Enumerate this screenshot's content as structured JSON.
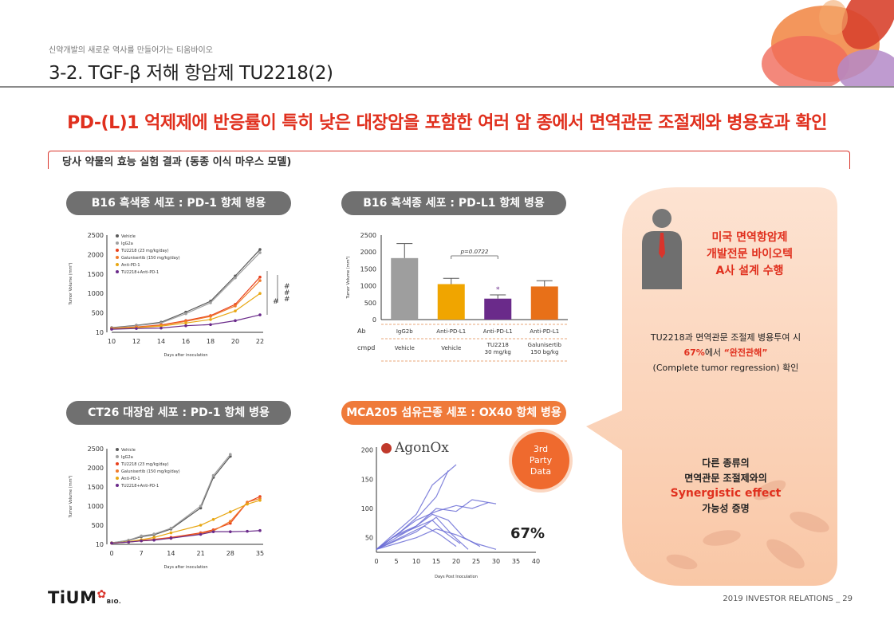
{
  "header": {
    "tagline": "신약개발의 새로운 역사를 만들어가는 티움바이오",
    "title": "3-2. TGF-β 저해 항암제 TU2218(2)"
  },
  "headline": "PD-(L)1 억제제에 반응률이 특히 낮은 대장암을 포함한 여러 암 종에서 면역관문 조절제와 병용효과 확인",
  "section_label": "당사 약물의 효능 실험 결과 (동종 이식 마우스 모델)",
  "panels": {
    "p1_title": "B16 흑색종 세포 : PD-1 항체 병용",
    "p2_title": "B16 흑색종 세포 : PD-L1 항체 병용",
    "p3_title": "CT26 대장암 세포 : PD-1 항체 병용",
    "p4_title": "MCA205 섬유근종 세포 : OX40 항체 병용"
  },
  "colors": {
    "vehicle": "#5a5a5a",
    "igg2a": "#a0a0a0",
    "tu2218": "#e8401c",
    "galunisertib": "#f07a2a",
    "anti_pd1": "#e8a713",
    "combo": "#6a2a8a",
    "accent_red": "#e0301e",
    "accent_orange": "#ef7a3a",
    "agonox_line": "#6c6fd6"
  },
  "chart_data": [
    {
      "type": "line",
      "id": "b16_pd1",
      "xlabel": "Days after inoculation",
      "ylabel": "Tumor Volume (mm³)",
      "x": [
        10,
        12,
        14,
        16,
        18,
        20,
        22
      ],
      "x_ticks": [
        "10",
        "12",
        "14",
        "16",
        "18",
        "20",
        "22"
      ],
      "y_ticks": [
        "10",
        "500",
        "1000",
        "1500",
        "2000",
        "2500"
      ],
      "ylim": [
        0,
        2500
      ],
      "legend": [
        "Vehicle",
        "IgG2a",
        "TU2218 (23 mg/kg/day)",
        "Galunisertib (150 mg/kg/day)",
        "Anti-PD-1",
        "TU2218+Anti-PD-1"
      ],
      "series": [
        {
          "name": "Vehicle",
          "values": [
            120,
            180,
            260,
            520,
            800,
            1450,
            2130
          ]
        },
        {
          "name": "IgG2a",
          "values": [
            110,
            170,
            240,
            480,
            760,
            1400,
            2050
          ]
        },
        {
          "name": "TU2218 (23 mg/kg/day)",
          "values": [
            100,
            140,
            190,
            300,
            430,
            720,
            1420
          ]
        },
        {
          "name": "Galunisertib (150 mg/kg/day)",
          "values": [
            100,
            130,
            180,
            280,
            410,
            680,
            1330
          ]
        },
        {
          "name": "Anti-PD-1",
          "values": [
            90,
            120,
            160,
            240,
            330,
            550,
            1000
          ]
        },
        {
          "name": "TU2218+Anti-PD-1",
          "values": [
            80,
            100,
            110,
            170,
            200,
            300,
            450
          ]
        }
      ],
      "annotations": [
        "#",
        "#",
        "#",
        "#"
      ]
    },
    {
      "type": "bar",
      "id": "b16_pdl1",
      "ylabel": "Tumor Volume (mm³)",
      "y_ticks": [
        "0",
        "500",
        "1000",
        "1500",
        "2000",
        "2500"
      ],
      "ylim": [
        0,
        2500
      ],
      "categories": [
        "IgG2b",
        "Anti-PD-L1",
        "Anti-PD-L1",
        "Anti-PD-L1"
      ],
      "cmpd": [
        "Vehicle",
        "Vehicle",
        "TU2218\n30 mg/kg",
        "Galunisertib\n150 bg/kg"
      ],
      "values": [
        1820,
        1050,
        620,
        980
      ],
      "errors": [
        430,
        170,
        110,
        170
      ],
      "bar_colors": [
        "#9e9e9e",
        "#f0a500",
        "#6a2a8a",
        "#e87018"
      ],
      "row_labels": [
        "Ab",
        "cmpd"
      ],
      "annotation": "p=0.0722",
      "star": "*"
    },
    {
      "type": "line",
      "id": "ct26_pd1",
      "xlabel": "Days after inoculation",
      "ylabel": "Tumor Volume (mm³)",
      "x": [
        0,
        4,
        7,
        10,
        14,
        21,
        24,
        28,
        32,
        35
      ],
      "x_ticks": [
        "0",
        "7",
        "14",
        "21",
        "28",
        "35"
      ],
      "y_ticks": [
        "10",
        "500",
        "1000",
        "1500",
        "2000",
        "2500"
      ],
      "ylim": [
        0,
        2500
      ],
      "legend": [
        "Vehicle",
        "IgG2a",
        "TU2218 (23 mg/kg/day)",
        "Galunisertib (150 mg/kg/day)",
        "Anti-PD-1",
        "TU2218+Anti-PD-1"
      ],
      "series": [
        {
          "name": "Vehicle",
          "x": [
            0,
            4,
            7,
            10,
            14,
            21,
            24,
            28
          ],
          "values": [
            40,
            100,
            200,
            250,
            400,
            950,
            1750,
            2300
          ]
        },
        {
          "name": "IgG2a",
          "x": [
            0,
            4,
            7,
            10,
            14,
            21,
            24,
            28
          ],
          "values": [
            40,
            110,
            220,
            270,
            420,
            1000,
            1800,
            2350
          ]
        },
        {
          "name": "TU2218 (23 mg/kg/day)",
          "x": [
            0,
            4,
            7,
            10,
            14,
            21,
            24,
            28,
            32,
            35
          ],
          "values": [
            30,
            60,
            100,
            130,
            180,
            300,
            380,
            550,
            1100,
            1250
          ]
        },
        {
          "name": "Galunisertib (150 mg/kg/day)",
          "x": [
            0,
            4,
            7,
            10,
            14,
            21,
            24,
            28,
            32,
            35
          ],
          "values": [
            30,
            60,
            90,
            120,
            160,
            280,
            350,
            600,
            1100,
            1200
          ]
        },
        {
          "name": "Anti-PD-1",
          "x": [
            0,
            4,
            7,
            10,
            14,
            21,
            24,
            28,
            32,
            35
          ],
          "values": [
            30,
            70,
            120,
            180,
            300,
            500,
            650,
            850,
            1050,
            1150
          ]
        },
        {
          "name": "TU2218+Anti-PD-1",
          "x": [
            0,
            4,
            7,
            10,
            14,
            21,
            24,
            28,
            32,
            35
          ],
          "values": [
            30,
            60,
            90,
            110,
            160,
            260,
            330,
            330,
            340,
            360
          ]
        }
      ]
    },
    {
      "type": "line",
      "id": "mca205_ox40",
      "xlabel": "Days Post Inoculation",
      "x_ticks": [
        "0",
        "5",
        "10",
        "15",
        "20",
        "25",
        "30",
        "35",
        "40"
      ],
      "y_ticks": [
        "50",
        "100",
        "150",
        "200"
      ],
      "ylim": [
        25,
        205
      ],
      "brand": "AgonOx",
      "badge": "3rd Party Data",
      "response_rate": "67%",
      "series": [
        {
          "values": [
            [
              0,
              30
            ],
            [
              5,
              60
            ],
            [
              10,
              90
            ],
            [
              14,
              140
            ],
            [
              20,
              175
            ]
          ]
        },
        {
          "values": [
            [
              0,
              30
            ],
            [
              6,
              60
            ],
            [
              11,
              90
            ],
            [
              15,
              120
            ],
            [
              18,
              165
            ]
          ]
        },
        {
          "values": [
            [
              0,
              30
            ],
            [
              5,
              55
            ],
            [
              10,
              80
            ],
            [
              15,
              95
            ],
            [
              20,
              105
            ],
            [
              24,
              100
            ],
            [
              28,
              110
            ]
          ]
        },
        {
          "values": [
            [
              0,
              30
            ],
            [
              5,
              50
            ],
            [
              10,
              70
            ],
            [
              15,
              100
            ],
            [
              20,
              95
            ],
            [
              24,
              115
            ],
            [
              30,
              108
            ]
          ]
        },
        {
          "values": [
            [
              0,
              30
            ],
            [
              5,
              55
            ],
            [
              10,
              70
            ],
            [
              14,
              90
            ],
            [
              18,
              80
            ],
            [
              22,
              50
            ],
            [
              26,
              35
            ]
          ]
        },
        {
          "values": [
            [
              0,
              30
            ],
            [
              4,
              50
            ],
            [
              9,
              65
            ],
            [
              14,
              80
            ],
            [
              17,
              60
            ],
            [
              21,
              40
            ]
          ]
        },
        {
          "values": [
            [
              0,
              30
            ],
            [
              5,
              45
            ],
            [
              10,
              60
            ],
            [
              15,
              85
            ],
            [
              19,
              55
            ],
            [
              23,
              30
            ]
          ]
        },
        {
          "values": [
            [
              0,
              30
            ],
            [
              6,
              50
            ],
            [
              12,
              70
            ],
            [
              16,
              55
            ],
            [
              20,
              35
            ]
          ]
        },
        {
          "values": [
            [
              0,
              30
            ],
            [
              5,
              40
            ],
            [
              10,
              50
            ],
            [
              15,
              65
            ],
            [
              20,
              55
            ],
            [
              25,
              40
            ],
            [
              30,
              30
            ]
          ]
        }
      ]
    }
  ],
  "bubble": {
    "partner_line1": "미국 면역항암제",
    "partner_line2": "개발전문 바이오텍",
    "partner_line3": "A사 설계 수행",
    "result_line1": "TU2218과 면역관문 조절제 병용투여 시",
    "result_pct": "67%",
    "result_mid": "에서 ",
    "result_quote": "“완전관해”",
    "result_line3": "(Complete tumor regression) 확인",
    "syn_line1": "다른 종류의",
    "syn_line2": "면역관문 조절제와의",
    "syn_line3": "Synergistic effect",
    "syn_line4": "가능성 증명"
  },
  "footer": {
    "logo": "TiUM",
    "logo_sub": "BIO.",
    "page": "2019 INVESTOR RELATIONS _ 29"
  }
}
